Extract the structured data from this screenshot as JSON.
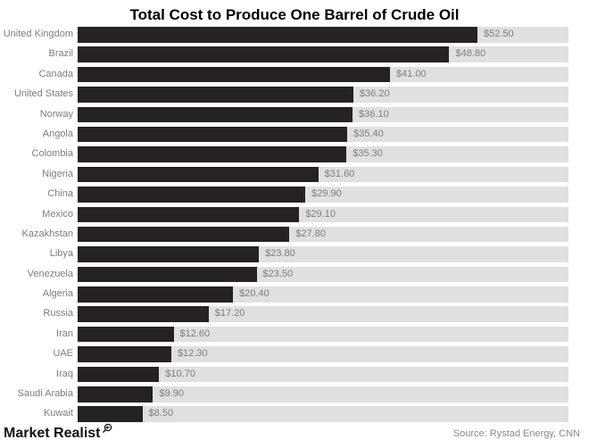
{
  "title": "Total Cost to Produce One Barrel of Crude Oil",
  "footer": {
    "brand": "Market Realist",
    "source": "Source: Rystad Energy, CNN"
  },
  "colors": {
    "bar": "#262223",
    "track": "#e0e0e0",
    "label_text": "#7d7d7d",
    "title_text": "#000000"
  },
  "chart_data": {
    "type": "bar",
    "orientation": "horizontal",
    "title": "Total Cost to Produce One Barrel of Crude Oil",
    "xlabel": "",
    "ylabel": "",
    "grid": false,
    "legend": null,
    "xlim": [
      0,
      64.45
    ],
    "categories": [
      "United Kingdom",
      "Brazil",
      "Canada",
      "United States",
      "Norway",
      "Angola",
      "Colombia",
      "Nigeria",
      "China",
      "Mexico",
      "Kazakhstan",
      "Libya",
      "Venezuela",
      "Algeria",
      "Russia",
      "Iran",
      "UAE",
      "Iraq",
      "Saudi Arabia",
      "Kuwait"
    ],
    "values": [
      52.5,
      48.8,
      41.0,
      36.2,
      36.1,
      35.4,
      35.3,
      31.6,
      29.9,
      29.1,
      27.8,
      23.8,
      23.5,
      20.4,
      17.2,
      12.6,
      12.3,
      10.7,
      9.9,
      8.5
    ],
    "value_labels": [
      "$52.50",
      "$48.80",
      "$41.00",
      "$36.20",
      "$36.10",
      "$35.40",
      "$35.30",
      "$31.60",
      "$29.90",
      "$29.10",
      "$27.80",
      "$23.80",
      "$23.50",
      "$20.40",
      "$17.20",
      "$12.60",
      "$12.30",
      "$10.70",
      "$9.90",
      "$8.50"
    ]
  }
}
